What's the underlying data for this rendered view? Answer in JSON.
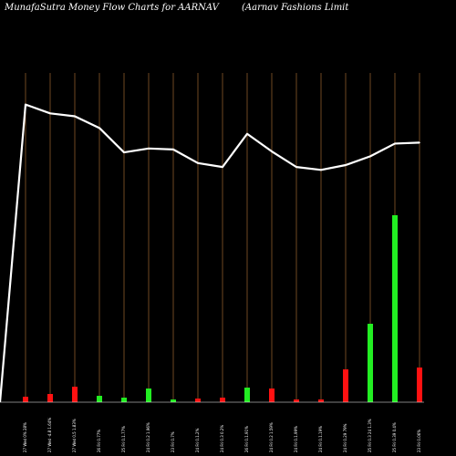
{
  "chart_data": {
    "type": "bar",
    "title_left": "MunafaSutra  Money Flow  Charts for AARNAV",
    "title_right": "(Aarnav    Fashions Limit",
    "categories": [
      "27 Wed 0% 28%",
      "27 Wed -4.8 1.64%",
      "27 Wed 0.5 1.83%",
      "26 Fri 0.77%",
      "25 Fri 0.1.77%",
      "24 Fri 0.2 1.96%",
      "23 Fri 0.7%",
      "24 Fri 0.1.2%",
      "24 Fri 0.3 0.2%",
      "26 Fri 0.1.91%",
      "24 Fri 0.2 1.59%",
      "24 Fri 0.1.99%",
      "24 Fri 0.1.19%",
      "24 Fri 0.29 79%",
      "25 Fri 0.3 24 1.3%",
      "25 Fri 0.39 0.4%",
      "23 Fri 0.06%"
    ],
    "bars": {
      "values": [
        6,
        9,
        17,
        7,
        5,
        15,
        3,
        4,
        5,
        16,
        15,
        3,
        3,
        36,
        86,
        205,
        38
      ],
      "colors": [
        "red",
        "red",
        "red",
        "green",
        "green",
        "green",
        "green",
        "red",
        "red",
        "green",
        "red",
        "red",
        "red",
        "red",
        "green",
        "green",
        "red"
      ],
      "ylim": [
        0,
        260
      ]
    },
    "line": {
      "values": [
        305,
        296,
        293,
        281,
        256,
        260,
        259,
        245,
        241,
        275,
        257,
        241,
        238,
        243,
        252,
        265,
        266
      ],
      "ylim": [
        0,
        330
      ]
    },
    "colors": {
      "background": "#000000",
      "up": "#22ee22",
      "down": "#ff1111",
      "line": "#ffffff",
      "grid": "#8b5a2b",
      "baseline": "#ffffff"
    }
  }
}
